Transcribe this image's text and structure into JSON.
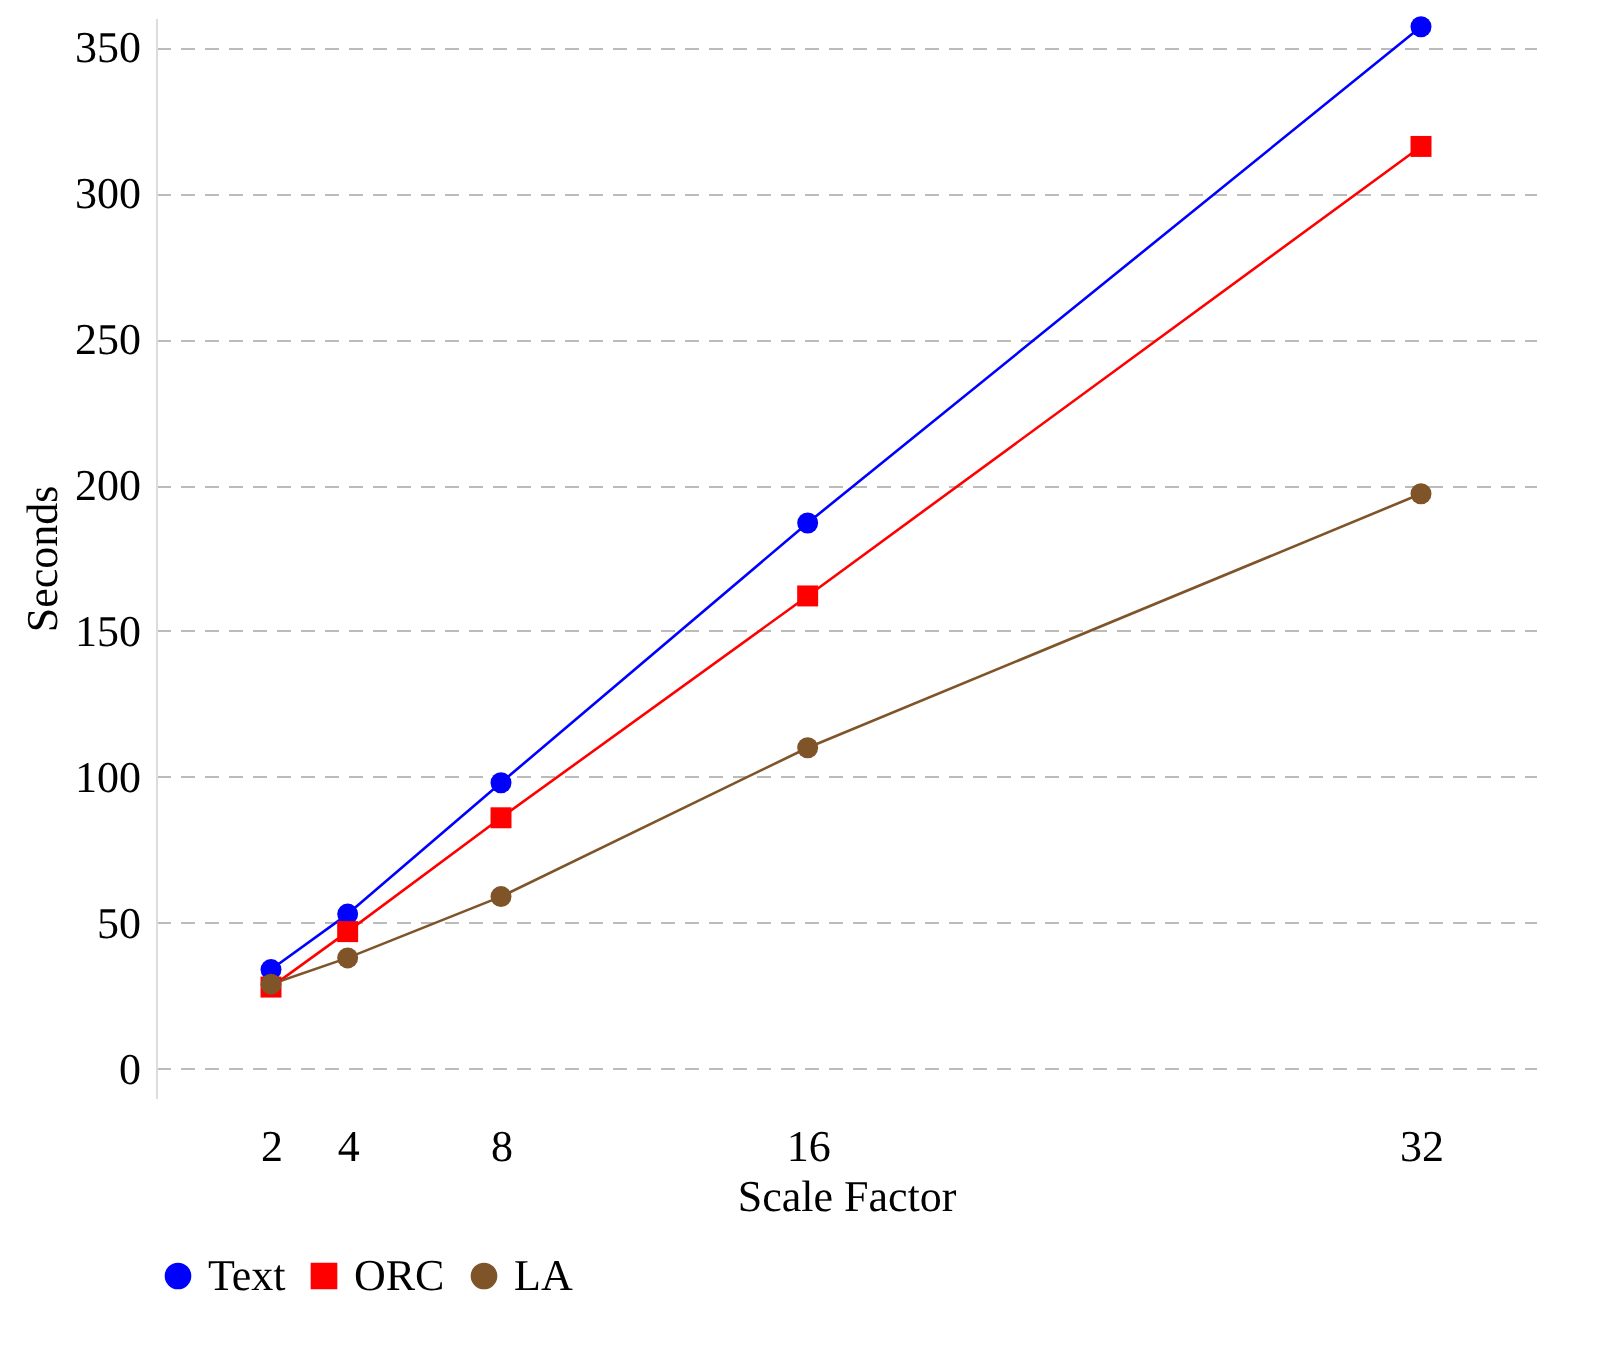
{
  "chart_data": {
    "type": "line",
    "xlabel": "Scale Factor",
    "ylabel": "Seconds",
    "x": [
      2,
      4,
      8,
      16,
      32
    ],
    "series": [
      {
        "name": "Text",
        "color": "#0000ff",
        "marker": "circle",
        "values": [
          34,
          53,
          98,
          187,
          357
        ]
      },
      {
        "name": "ORC",
        "color": "#ff0000",
        "marker": "square",
        "values": [
          28,
          47,
          86,
          162,
          316
        ]
      },
      {
        "name": "LA",
        "color": "#7f5429",
        "marker": "circle",
        "values": [
          29,
          38,
          59,
          110,
          197
        ]
      }
    ],
    "xlim": [
      -1,
      35
    ],
    "xticks": [
      2,
      4,
      8,
      16,
      32
    ],
    "ylim": [
      -10,
      360
    ],
    "yticks": [
      0,
      50,
      100,
      150,
      200,
      250,
      300,
      350
    ],
    "grid": "y",
    "legend": "bottom",
    "line_style": "solid"
  }
}
